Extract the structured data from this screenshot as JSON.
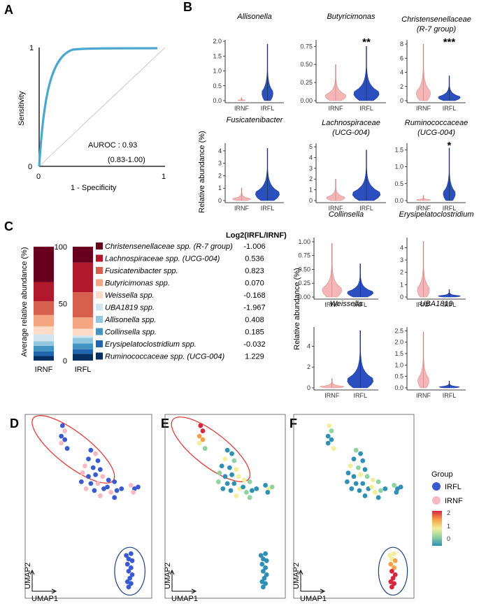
{
  "panels": {
    "A": "A",
    "B": "B",
    "C": "C",
    "D": "D",
    "E": "E",
    "F": "F"
  },
  "roc": {
    "xlabel": "1 - Specificity",
    "ylabel": "Sensitivity",
    "auroc_line1": "AUROC : 0.93",
    "auroc_line2": "(0.83-1.00)",
    "tick_x0": "0",
    "tick_x1": "1",
    "tick_y0": "0",
    "tick_y1": "1",
    "curve_color": "#4aa8d0"
  },
  "violin": {
    "ylabel": "Relative abundance (%)",
    "groups": [
      "IRNF",
      "IRFL"
    ],
    "colors": {
      "IRNF": "#f4b6b6",
      "IRFL": "#2c4fbf"
    },
    "plots": [
      {
        "title1": "Allisonella",
        "title2": "",
        "ticks": [
          "0.0",
          "0.5",
          "1.0",
          "1.5",
          "2.0"
        ],
        "ymax": 2.0,
        "nf": 0.1,
        "fl": 1.9,
        "nfw": 0.15,
        "flw": 0.35,
        "sig": ""
      },
      {
        "title1": "Butyricimonas",
        "title2": "",
        "ticks": [
          "0.00",
          "0.25",
          "0.50",
          "0.75"
        ],
        "ymax": 0.82,
        "nf": 0.5,
        "fl": 0.75,
        "nfw": 0.7,
        "flw": 0.9,
        "sig": "**"
      },
      {
        "title1": "Christensenellaceae",
        "title2": "(R-7 group)",
        "ticks": [
          "0",
          "2",
          "4",
          "6",
          "8"
        ],
        "ymax": 8.4,
        "nf": 8.0,
        "fl": 3.5,
        "nfw": 0.5,
        "flw": 0.9,
        "sig": "***"
      },
      {
        "title1": "Fusicatenibacter",
        "title2": "",
        "ticks": [
          "0",
          "1",
          "2",
          "3",
          "4"
        ],
        "ymax": 4.5,
        "nf": 1.0,
        "fl": 4.2,
        "nfw": 0.7,
        "flw": 1.0,
        "sig": ""
      },
      {
        "title1": "Lachnospiraceae",
        "title2": "(UCG-004)",
        "ticks": [
          "0",
          "1",
          "2",
          "3",
          "4",
          "5"
        ],
        "ymax": 5.2,
        "nf": 2.0,
        "fl": 4.7,
        "nfw": 0.6,
        "flw": 1.0,
        "sig": ""
      },
      {
        "title1": "Ruminococcaceae",
        "title2": "(UCG-004)",
        "ticks": [
          "0.0",
          "0.5",
          "1.0",
          "1.5"
        ],
        "ymax": 1.65,
        "nf": 0.15,
        "fl": 1.55,
        "nfw": 0.5,
        "flw": 0.4,
        "sig": "*"
      },
      {
        "title1": "Collinsella",
        "title2": "",
        "ticks": [
          "0.00",
          "0.25",
          "0.50",
          "0.75",
          "1.00"
        ],
        "ymax": 1.05,
        "nf": 0.97,
        "fl": 0.6,
        "nfw": 0.7,
        "flw": 1.0,
        "sig": ""
      },
      {
        "title1": "Erysipelatoclostridium",
        "title2": "",
        "ticks": [
          "0",
          "1",
          "2",
          "3",
          "4"
        ],
        "ymax": 4.7,
        "nf": 4.5,
        "fl": 0.6,
        "nfw": 0.4,
        "flw": 0.9,
        "sig": ""
      },
      {
        "title1": "Weissella",
        "title2": "",
        "ticks": [
          "0",
          "2",
          "4"
        ],
        "ymax": 5.7,
        "nf": 0.9,
        "fl": 5.5,
        "nfw": 0.9,
        "flw": 1.0,
        "sig": ""
      },
      {
        "title1": "UBA1819",
        "title2": "",
        "ticks": [
          "0.0",
          "0.5",
          "1.0",
          "1.5",
          "2.0",
          "2.5"
        ],
        "ymax": 2.6,
        "nf": 2.45,
        "fl": 0.3,
        "nfw": 0.35,
        "flw": 0.8,
        "sig": ""
      }
    ]
  },
  "stacked": {
    "ylabel": "Average relative abundance (%)",
    "ticks": [
      "0",
      "50",
      "100"
    ],
    "bars": [
      "IRNF",
      "IRFL"
    ],
    "log_header": "Log2(IRFL/IRNF)",
    "taxa": [
      {
        "name": "Christensenellaceae spp. (R-7 group)",
        "color": "#67001f",
        "irnf": 31,
        "irfl": 14,
        "log2": "-1.006"
      },
      {
        "name": "Lachnospiraceae spp. (UCG-004)",
        "color": "#b2182b",
        "irnf": 17,
        "irfl": 26,
        "log2": "0.536"
      },
      {
        "name": "Fusicatenibacter spp.",
        "color": "#d6604d",
        "irnf": 12,
        "irfl": 22,
        "log2": "0.823"
      },
      {
        "name": "Butyricimonas spp.",
        "color": "#f4a582",
        "irnf": 10,
        "irfl": 10,
        "log2": "0.070"
      },
      {
        "name": "Weissella spp.",
        "color": "#fddbc7",
        "irnf": 7,
        "irfl": 6,
        "log2": "-0.168"
      },
      {
        "name": "UBA1819 spp.",
        "color": "#d1e5f0",
        "irnf": 6,
        "irfl": 2,
        "log2": "-1.967"
      },
      {
        "name": "Allisonella spp.",
        "color": "#92c5de",
        "irnf": 4,
        "irfl": 5,
        "log2": "0.408"
      },
      {
        "name": "Collinsella spp.",
        "color": "#4393c3",
        "irnf": 5,
        "irfl": 5,
        "log2": "0.185"
      },
      {
        "name": "Erysipelatoclostridium spp.",
        "color": "#2166ac",
        "irnf": 4,
        "irfl": 4,
        "log2": "-0.032"
      },
      {
        "name": "Ruminococcaceae spp. (UCG-004)",
        "color": "#053061",
        "irnf": 4,
        "irfl": 6,
        "log2": "1.229"
      }
    ]
  },
  "umap": {
    "xlabel": "UMAP1",
    "ylabel": "UMAP2",
    "legend_title": "Group",
    "legend": [
      {
        "label": "IRFL",
        "color": "#3a5bd0"
      },
      {
        "label": "IRNF",
        "color": "#f6b8c2"
      }
    ],
    "colorbar_ticks": [
      "2",
      "1",
      "0"
    ],
    "ellipse_red": "#e0302a",
    "ellipse_blue": "#1c3f7a"
  }
}
